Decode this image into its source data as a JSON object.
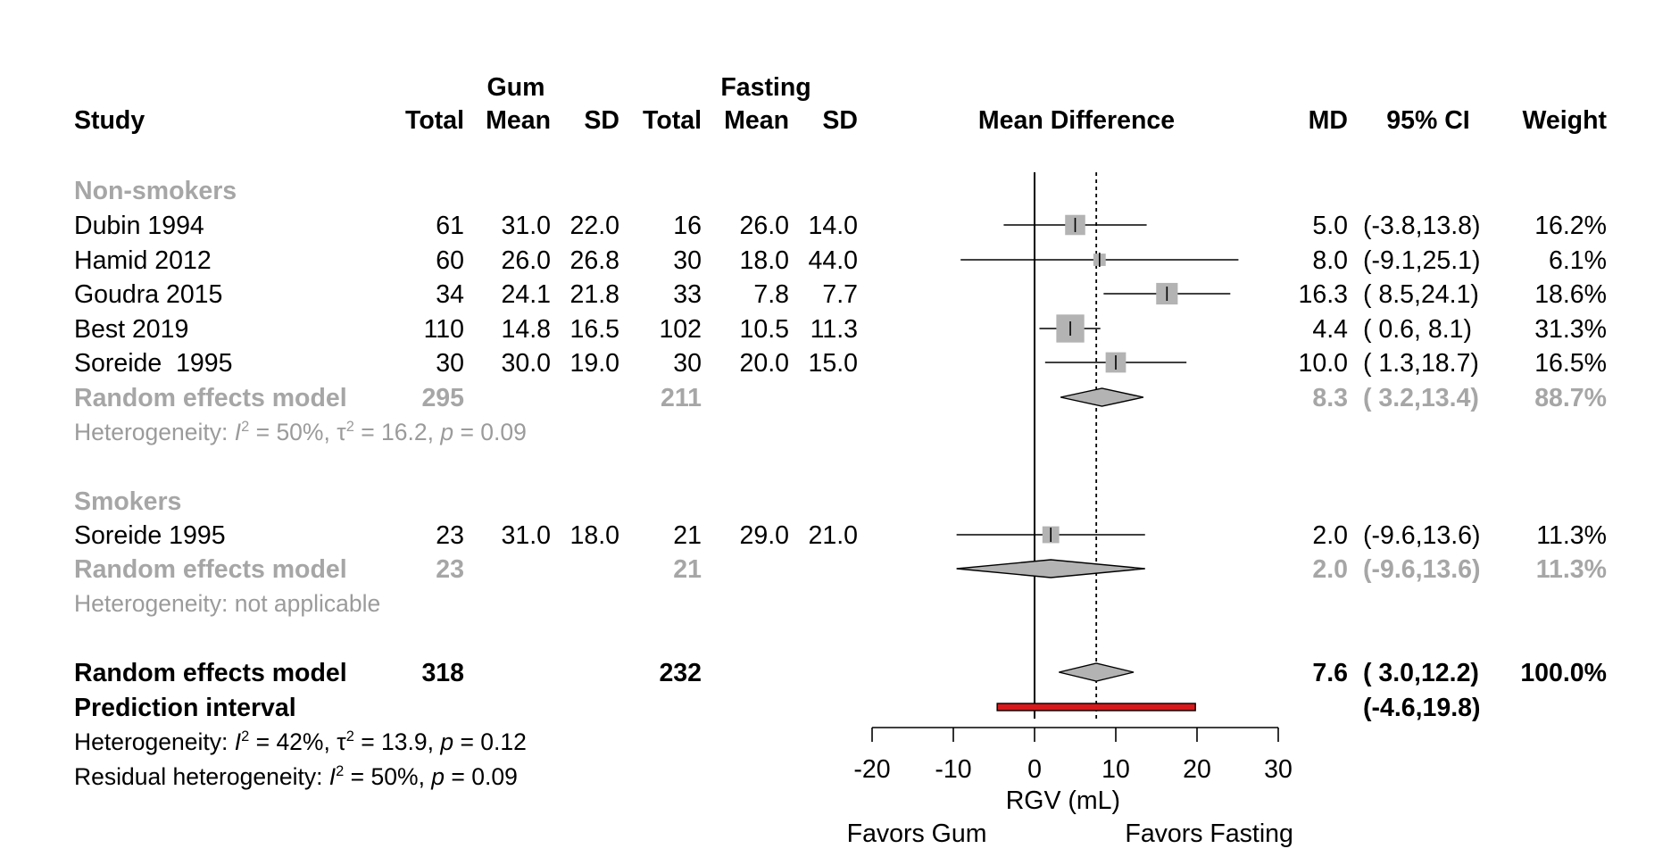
{
  "headers": {
    "study": "Study",
    "group_gum": "Gum",
    "group_fasting": "Fasting",
    "total": "Total",
    "mean": "Mean",
    "sd": "SD",
    "plot": "Mean Difference",
    "md": "MD",
    "ci": "95% CI",
    "weight": "Weight"
  },
  "subgroups": [
    {
      "label": "Non-smokers",
      "studies": [
        {
          "study": "Dubin 1994",
          "gum_total": "61",
          "gum_mean": "31.0",
          "gum_sd": "22.0",
          "fast_total": "16",
          "fast_mean": "26.0",
          "fast_sd": "14.0",
          "md": "5.0",
          "ci": "(-3.8,13.8)",
          "weight": "16.2%"
        },
        {
          "study": "Hamid 2012",
          "gum_total": "60",
          "gum_mean": "26.0",
          "gum_sd": "26.8",
          "fast_total": "30",
          "fast_mean": "18.0",
          "fast_sd": "44.0",
          "md": "8.0",
          "ci": "(-9.1,25.1)",
          "weight": "6.1%"
        },
        {
          "study": "Goudra 2015",
          "gum_total": "34",
          "gum_mean": "24.1",
          "gum_sd": "21.8",
          "fast_total": "33",
          "fast_mean": "7.8",
          "fast_sd": "7.7",
          "md": "16.3",
          "ci": "( 8.5,24.1)",
          "weight": "18.6%"
        },
        {
          "study": "Best 2019",
          "gum_total": "110",
          "gum_mean": "14.8",
          "gum_sd": "16.5",
          "fast_total": "102",
          "fast_mean": "10.5",
          "fast_sd": "11.3",
          "md": "4.4",
          "ci": "( 0.6, 8.1)",
          "weight": "31.3%"
        },
        {
          "study": "Soreide  1995",
          "gum_total": "30",
          "gum_mean": "30.0",
          "gum_sd": "19.0",
          "fast_total": "30",
          "fast_mean": "20.0",
          "fast_sd": "15.0",
          "md": "10.0",
          "ci": "( 1.3,18.7)",
          "weight": "16.5%"
        }
      ],
      "summary": {
        "label": "Random effects model",
        "gum_total": "295",
        "fast_total": "211",
        "md": "8.3",
        "ci": "( 3.2,13.4)",
        "weight": "88.7%"
      },
      "heterogeneity": {
        "i2": "50%",
        "tau2": "16.2",
        "p": "0.09"
      }
    },
    {
      "label": "Smokers",
      "studies": [
        {
          "study": "Soreide 1995",
          "gum_total": "23",
          "gum_mean": "31.0",
          "gum_sd": "18.0",
          "fast_total": "21",
          "fast_mean": "29.0",
          "fast_sd": "21.0",
          "md": "2.0",
          "ci": "(-9.6,13.6)",
          "weight": "11.3%"
        }
      ],
      "summary": {
        "label": "Random effects model",
        "gum_total": "23",
        "fast_total": "21",
        "md": "2.0",
        "ci": "(-9.6,13.6)",
        "weight": "11.3%"
      },
      "heterogeneity_text": "Heterogeneity: not applicable"
    }
  ],
  "overall": {
    "label": "Random effects model",
    "gum_total": "318",
    "fast_total": "232",
    "md": "7.6",
    "ci": "( 3.0,12.2)",
    "weight": "100.0%",
    "prediction_label": "Prediction interval",
    "prediction_ci": "(-4.6,19.8)",
    "heterogeneity": {
      "i2": "42%",
      "tau2": "13.9",
      "p": "0.12"
    },
    "residual": {
      "i2": "50%",
      "p": "0.09"
    }
  },
  "labels": {
    "heterogeneity": "Heterogeneity: ",
    "residual": "Residual heterogeneity: ",
    "i_letter": "I",
    "tau_letter": "τ",
    "p_letter": "p",
    "sq": "2",
    "eq": " = ",
    "sep": ", "
  },
  "axis": {
    "label": "RGV (mL)",
    "left_favors": "Favors Gum",
    "right_favors": "Favors Fasting",
    "ticks": [
      "-20",
      "-10",
      "0",
      "10",
      "20",
      "30"
    ]
  },
  "colors": {
    "subgroup_text": "#a6a6a6",
    "square": "#b3b3b3",
    "diamond": "#b3b3b3",
    "prediction": "#d7191c"
  },
  "chart_data": {
    "type": "forest",
    "xlabel": "RGV (mL)",
    "xlim": [
      -20,
      30
    ],
    "null_line": 0,
    "overall_effect_line": 7.6,
    "studies": [
      {
        "subgroup": "Non-smokers",
        "name": "Dubin 1994",
        "md": 5.0,
        "lo": -3.8,
        "hi": 13.8,
        "weight": 16.2
      },
      {
        "subgroup": "Non-smokers",
        "name": "Hamid 2012",
        "md": 8.0,
        "lo": -9.1,
        "hi": 25.1,
        "weight": 6.1
      },
      {
        "subgroup": "Non-smokers",
        "name": "Goudra 2015",
        "md": 16.3,
        "lo": 8.5,
        "hi": 24.1,
        "weight": 18.6
      },
      {
        "subgroup": "Non-smokers",
        "name": "Best 2019",
        "md": 4.4,
        "lo": 0.6,
        "hi": 8.1,
        "weight": 31.3
      },
      {
        "subgroup": "Non-smokers",
        "name": "Soreide  1995",
        "md": 10.0,
        "lo": 1.3,
        "hi": 18.7,
        "weight": 16.5
      },
      {
        "subgroup": "Smokers",
        "name": "Soreide 1995",
        "md": 2.0,
        "lo": -9.6,
        "hi": 13.6,
        "weight": 11.3
      }
    ],
    "subgroup_summaries": [
      {
        "subgroup": "Non-smokers",
        "md": 8.3,
        "lo": 3.2,
        "hi": 13.4,
        "weight": 88.7
      },
      {
        "subgroup": "Smokers",
        "md": 2.0,
        "lo": -9.6,
        "hi": 13.6,
        "weight": 11.3
      }
    ],
    "overall": {
      "md": 7.6,
      "lo": 3.0,
      "hi": 12.2,
      "weight": 100.0
    },
    "prediction_interval": {
      "lo": -4.6,
      "hi": 19.8
    }
  }
}
